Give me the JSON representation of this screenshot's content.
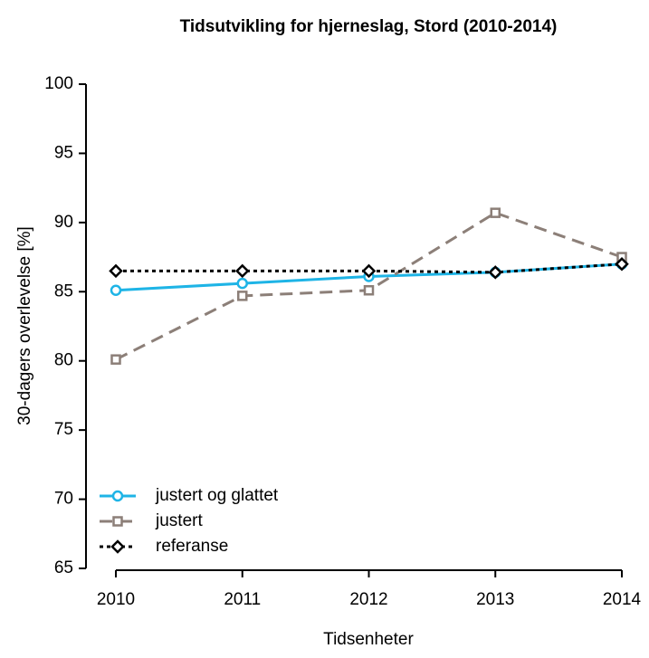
{
  "chart_data": {
    "type": "line",
    "title": "Tidsutvikling for hjerneslag, Stord (2010-2014)",
    "x_label": "Tidsenheter",
    "y_label": "30-dagers overlevelse [%]",
    "x": [
      2010,
      2011,
      2012,
      2013,
      2014
    ],
    "series": [
      {
        "name": "justert og glattet",
        "color": "#1eb4e6",
        "linestyle": "solid",
        "marker": "circle",
        "values": [
          85.1,
          85.6,
          86.1,
          86.4,
          87.0
        ]
      },
      {
        "name": "justert",
        "color": "#8c7f78",
        "linestyle": "dashed",
        "marker": "square",
        "values": [
          80.1,
          84.7,
          85.1,
          90.7,
          87.5
        ]
      },
      {
        "name": "referanse",
        "color": "#000000",
        "linestyle": "dotted",
        "marker": "diamond",
        "values": [
          86.5,
          86.5,
          86.5,
          86.4,
          87.0
        ]
      }
    ],
    "xlim": [
      2010,
      2014
    ],
    "xticks": [
      2010,
      2011,
      2012,
      2013,
      2014
    ],
    "ylim": [
      65,
      100
    ],
    "yticks": [
      65,
      70,
      75,
      80,
      85,
      90,
      95,
      100
    ],
    "grid": false,
    "legend": "bottom-left"
  }
}
